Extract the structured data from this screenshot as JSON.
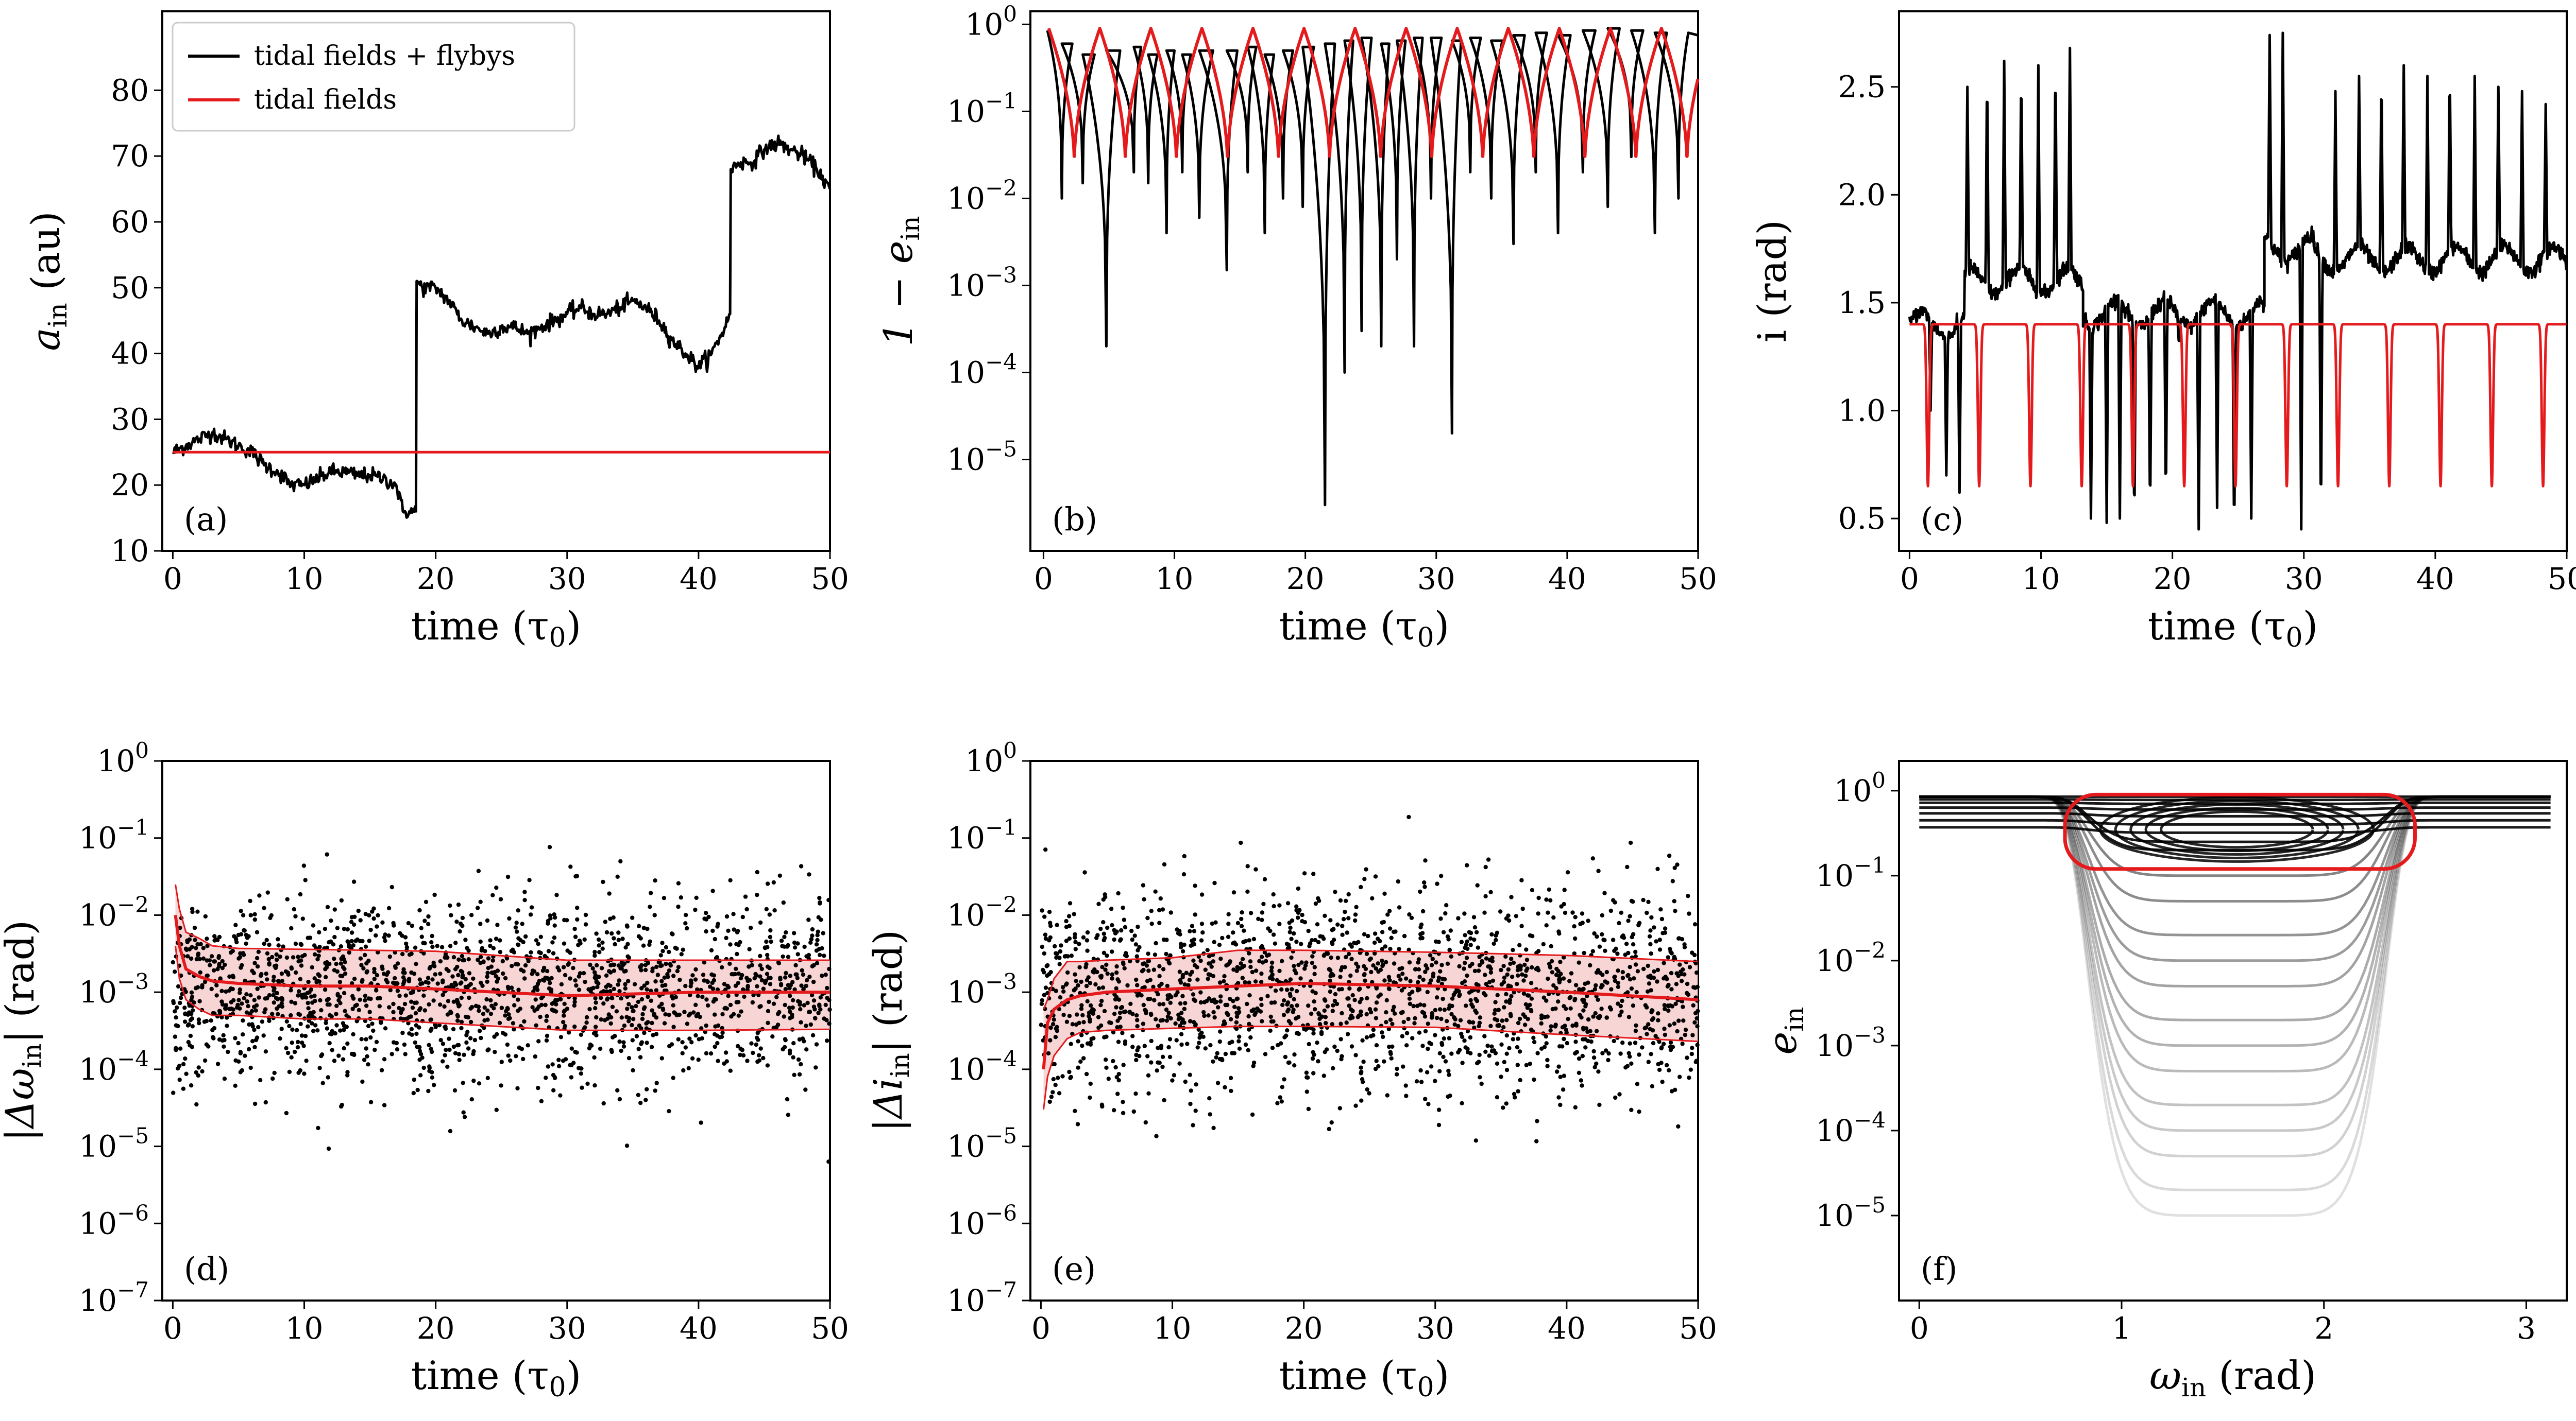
{
  "colors": {
    "flyby": "#000000",
    "tidal": "#e41a1c",
    "band": "#f6c7c7"
  },
  "legend": {
    "black": "tidal fields + flybys",
    "red": "tidal fields"
  },
  "chart_data": [
    {
      "panel": "(a)",
      "type": "line",
      "xlabel": "time (τ0)",
      "ylabel": "a_in (au)",
      "xlim": [
        0,
        50
      ],
      "ylim": [
        10,
        90
      ],
      "xticks": [
        "0",
        "10",
        "20",
        "30",
        "40",
        "50"
      ],
      "yticks": [
        "10",
        "20",
        "30",
        "40",
        "50",
        "60",
        "70",
        "80"
      ],
      "legend_position": "top-left",
      "series": [
        {
          "name": "tidal fields + flybys",
          "color": "black",
          "x": [
            0,
            1,
            2,
            3,
            4,
            5,
            6,
            7,
            8,
            9,
            10,
            11,
            12,
            13,
            14,
            15,
            16,
            17,
            17.5,
            18,
            18.5,
            18.6,
            19,
            20,
            21,
            22,
            23,
            24,
            25,
            26,
            27,
            28,
            29,
            30,
            31,
            32,
            33,
            34,
            35,
            36,
            37,
            38,
            39,
            40,
            41,
            42,
            42.4,
            42.5,
            43,
            44,
            45,
            46,
            47,
            48,
            49,
            50
          ],
          "y": [
            25,
            26,
            27,
            28,
            27,
            26,
            25,
            23,
            22,
            20,
            20,
            21,
            22,
            22,
            21.5,
            21.5,
            21,
            20,
            16,
            16,
            16,
            51,
            50,
            50,
            48,
            45,
            44,
            43,
            44,
            44,
            43,
            44,
            45,
            46,
            47,
            46,
            46,
            47,
            48,
            47,
            45,
            42,
            40,
            38,
            40,
            44,
            46,
            68,
            69,
            69,
            71,
            72,
            71,
            70,
            68,
            65
          ]
        },
        {
          "name": "tidal fields",
          "color": "red",
          "x": [
            0,
            50
          ],
          "y": [
            25,
            25
          ]
        }
      ]
    },
    {
      "panel": "(b)",
      "type": "line",
      "xlabel": "time (τ0)",
      "ylabel": "1 − e_in",
      "xlim": [
        0,
        50
      ],
      "ylim_log10": [
        -6,
        0
      ],
      "yscale": "log",
      "xticks": [
        "0",
        "10",
        "20",
        "30",
        "40",
        "50"
      ],
      "yticks": [
        "10^-5",
        "10^-4",
        "10^-3",
        "10^-2",
        "10^-1",
        "10^0"
      ],
      "series": [
        {
          "name": "tidal fields",
          "color": "red",
          "period": 3.9,
          "max": 0.9,
          "min": 0.025,
          "start": 0.4
        },
        {
          "name": "tidal fields + flybys",
          "color": "black",
          "minima_t": [
            1.4,
            3.0,
            4.8,
            6.9,
            8.0,
            9.4,
            10.6,
            11.9,
            14.0,
            15.6,
            16.9,
            18.3,
            19.8,
            21.5,
            23.0,
            24.3,
            25.8,
            27.0,
            28.3,
            29.6,
            31.2,
            32.6,
            34.2,
            35.9,
            37.6,
            39.3,
            41.2,
            43.1,
            44.9,
            46.7,
            48.5
          ],
          "minima_v": [
            0.01,
            0.015,
            0.0002,
            0.02,
            0.015,
            0.004,
            0.02,
            0.006,
            0.0015,
            0.02,
            0.004,
            0.01,
            0.008,
            3e-06,
            0.0001,
            0.0003,
            0.0002,
            0.002,
            0.0002,
            0.01,
            2e-05,
            0.02,
            0.01,
            0.003,
            0.02,
            0.004,
            0.02,
            0.008,
            0.03,
            0.004,
            0.01
          ],
          "maxima_v": [
            0.6,
            0.45,
            0.5,
            0.55,
            0.45,
            0.5,
            0.45,
            0.5,
            0.5,
            0.55,
            0.45,
            0.5,
            0.55,
            0.6,
            0.65,
            0.7,
            0.6,
            0.65,
            0.7,
            0.7,
            0.65,
            0.7,
            0.65,
            0.75,
            0.8,
            0.75,
            0.85,
            0.9,
            0.85,
            0.8,
            0.8
          ]
        }
      ]
    },
    {
      "panel": "(c)",
      "type": "line",
      "xlabel": "time (τ0)",
      "ylabel": "i (rad)",
      "xlim": [
        0,
        50
      ],
      "ylim": [
        0.35,
        2.85
      ],
      "xticks": [
        "0",
        "10",
        "20",
        "30",
        "40",
        "50"
      ],
      "yticks": [
        "0.5",
        "1.0",
        "1.5",
        "2.0",
        "2.5"
      ],
      "series": [
        {
          "name": "tidal fields",
          "color": "red",
          "period": 3.9,
          "base": 1.4,
          "min": 0.65,
          "start": 1.4
        },
        {
          "name": "tidal fields + flybys",
          "color": "black",
          "segments": [
            {
              "from": 0,
              "to": 4.2,
              "base": 1.4,
              "spikes_t": [
                1.6,
                2.8,
                3.8
              ],
              "spikes_v": [
                1.0,
                0.7,
                0.62
              ]
            },
            {
              "from": 4.2,
              "to": 13.2,
              "base": 1.6,
              "spikes_t": [
                4.4,
                5.9,
                7.2,
                8.5,
                9.8,
                11.1,
                12.2
              ],
              "spikes_v": [
                2.5,
                2.6,
                2.62,
                2.6,
                2.6,
                2.65,
                2.68
              ]
            },
            {
              "from": 13.2,
              "to": 27.0,
              "base": 1.45,
              "spikes_t": [
                13.8,
                15.0,
                16.0,
                17.1,
                18.3,
                19.5,
                20.5,
                22.0,
                23.4,
                24.7,
                26.0
              ],
              "spikes_v": [
                0.5,
                0.48,
                0.5,
                0.45,
                0.5,
                0.55,
                1.3,
                0.45,
                0.55,
                0.4,
                0.5
              ]
            },
            {
              "from": 27.0,
              "to": 30.8,
              "base": 1.75,
              "spikes_t": [
                27.4,
                28.4,
                29.8
              ],
              "spikes_v": [
                2.74,
                2.75,
                0.45
              ]
            },
            {
              "from": 30.8,
              "to": 50,
              "base": 1.7,
              "spikes_t": [
                31.3,
                32.4,
                34.2,
                35.9,
                37.6,
                39.4,
                41.1,
                43.0,
                44.8,
                46.6,
                48.4
              ],
              "spikes_v": [
                0.45,
                2.48,
                2.55,
                2.6,
                2.6,
                2.55,
                2.6,
                2.55,
                2.5,
                2.48,
                2.42
              ]
            }
          ]
        }
      ]
    },
    {
      "panel": "(d)",
      "type": "scatter",
      "xlabel": "time (τ0)",
      "ylabel": "|Δω_in| (rad)",
      "xlim": [
        0,
        50
      ],
      "ylim_log10": [
        -7,
        0
      ],
      "yscale": "log",
      "xticks": [
        "0",
        "10",
        "20",
        "30",
        "40",
        "50"
      ],
      "yticks": [
        "10^-7",
        "10^-6",
        "10^-5",
        "10^-4",
        "10^-3",
        "10^-2",
        "10^-1",
        "10^0"
      ],
      "scatter": {
        "color": "black",
        "n_points": 1900,
        "center_log10": -3.0,
        "spread_log10": 0.6
      },
      "band": {
        "t": [
          0.2,
          0.5,
          1,
          2,
          3,
          5,
          10,
          15,
          20,
          30,
          40,
          50
        ],
        "median": [
          0.01,
          0.004,
          0.002,
          0.0016,
          0.0014,
          0.0013,
          0.0012,
          0.0012,
          0.0011,
          0.0009,
          0.001,
          0.001
        ],
        "upper": [
          0.025,
          0.012,
          0.006,
          0.005,
          0.004,
          0.0037,
          0.0036,
          0.0035,
          0.0034,
          0.0026,
          0.0026,
          0.0026
        ],
        "lower": [
          0.004,
          0.0015,
          0.0008,
          0.0006,
          0.0005,
          0.0005,
          0.00045,
          0.00045,
          0.0004,
          0.00032,
          0.00032,
          0.00033
        ]
      }
    },
    {
      "panel": "(e)",
      "type": "scatter",
      "xlabel": "time (τ0)",
      "ylabel": "|Δi_in| (rad)",
      "xlim": [
        0,
        50
      ],
      "ylim_log10": [
        -7,
        0
      ],
      "yscale": "log",
      "xticks": [
        "0",
        "10",
        "20",
        "30",
        "40",
        "50"
      ],
      "yticks": [
        "10^-7",
        "10^-6",
        "10^-5",
        "10^-4",
        "10^-3",
        "10^-2",
        "10^-1",
        "10^0"
      ],
      "scatter": {
        "color": "black",
        "n_points": 1900,
        "center_log10": -3.0,
        "spread_log10": 0.65
      },
      "band": {
        "t": [
          0.2,
          0.5,
          1,
          2,
          3,
          5,
          10,
          15,
          20,
          30,
          40,
          50
        ],
        "median": [
          0.0001,
          0.0004,
          0.0006,
          0.0008,
          0.0009,
          0.001,
          0.0011,
          0.0012,
          0.0013,
          0.0012,
          0.001,
          0.0008
        ],
        "upper": [
          0.0006,
          0.0008,
          0.0015,
          0.0025,
          0.0025,
          0.0026,
          0.0028,
          0.0035,
          0.0035,
          0.0033,
          0.003,
          0.0025
        ],
        "lower": [
          3e-05,
          8e-05,
          0.00015,
          0.00025,
          0.0003,
          0.00032,
          0.00034,
          0.00036,
          0.00036,
          0.00035,
          0.00028,
          0.00023
        ]
      }
    },
    {
      "panel": "(f)",
      "type": "line",
      "xlabel": "ω_in (rad)",
      "ylabel": "e_in",
      "xlim": [
        -0.1,
        3.2
      ],
      "ylim_log10": [
        -6,
        0.35
      ],
      "yscale": "log",
      "xticks": [
        "0",
        "1",
        "2",
        "3"
      ],
      "yticks": [
        "10^-5",
        "10^-4",
        "10^-3",
        "10^-2",
        "10^-1",
        "10^0"
      ],
      "circulating_tracks_e": [
        0.85,
        0.78,
        0.7,
        0.6,
        0.5,
        0.4,
        0.32,
        0.25,
        0.2,
        0.1,
        0.05,
        0.02,
        0.01,
        0.005,
        0.002,
        0.001,
        0.0005,
        0.0002,
        0.0001,
        5e-05,
        2e-05,
        1e-05
      ],
      "red_loop": {
        "omega": [
          0.72,
          2.45
        ],
        "e": [
          0.12,
          0.9
        ]
      }
    }
  ]
}
